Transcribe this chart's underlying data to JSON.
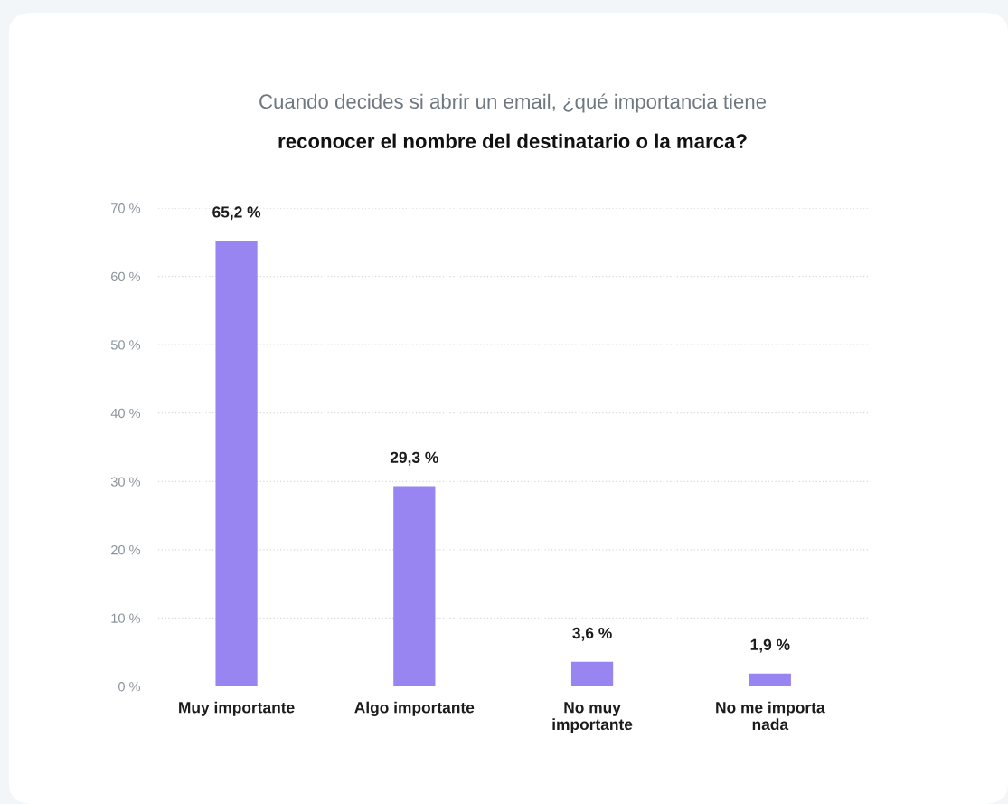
{
  "chart_data": {
    "type": "bar",
    "title": "Cuando decides si abrir un email, ¿qué importancia tiene",
    "subtitle": "reconocer el nombre del destinatario o la marca?",
    "categories": [
      "Muy importante",
      "Algo importante",
      "No muy\nimportante",
      "No me importa\nnada"
    ],
    "values": [
      65.2,
      29.3,
      3.6,
      1.9
    ],
    "value_labels": [
      "65,2 %",
      "29,3 %",
      "3,6 %",
      "1,9 %"
    ],
    "color": "#9985f2",
    "ylim": [
      0,
      70
    ],
    "yticks": [
      {
        "value": 0,
        "label": "0 %"
      },
      {
        "value": 10,
        "label": "10 %"
      },
      {
        "value": 20,
        "label": "20 %"
      },
      {
        "value": 30,
        "label": "30 %"
      },
      {
        "value": 40,
        "label": "40 %"
      },
      {
        "value": 50,
        "label": "50 %"
      },
      {
        "value": 60,
        "label": "60 %"
      },
      {
        "value": 70,
        "label": "70 %"
      }
    ],
    "grid": "y"
  }
}
